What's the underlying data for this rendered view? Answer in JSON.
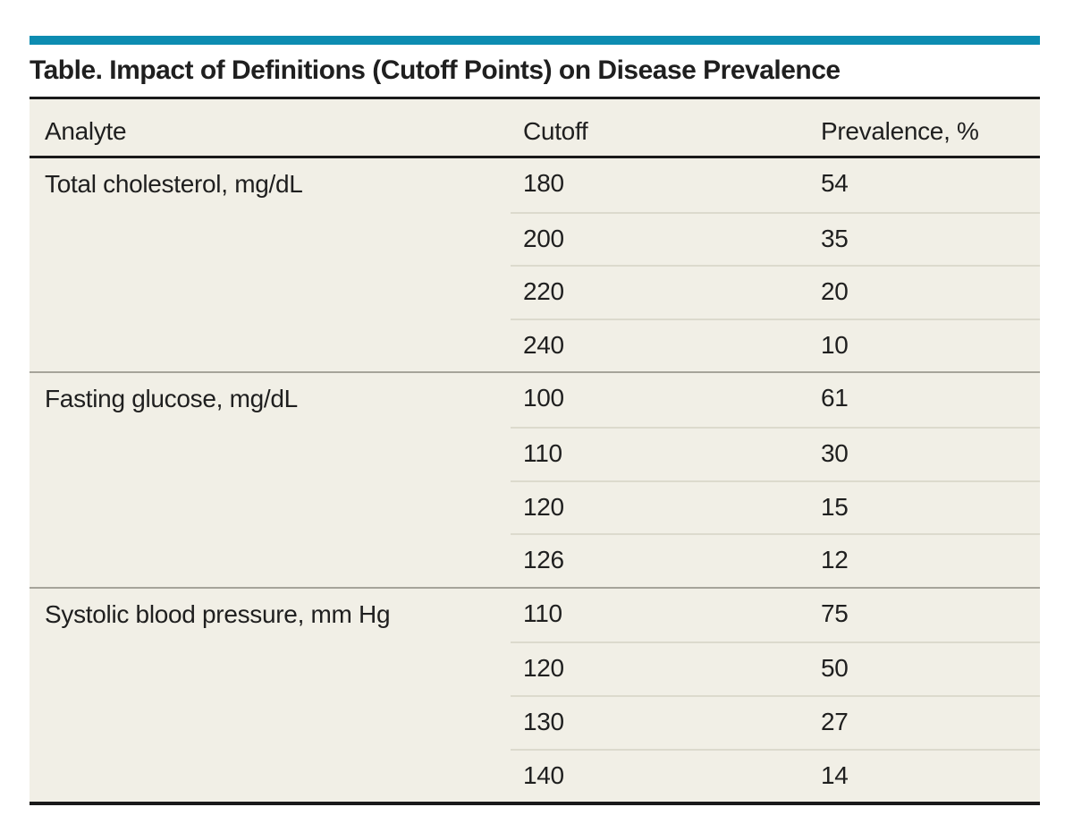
{
  "figure": {
    "title": "Table. Impact of Definitions (Cutoff Points) on Disease Prevalence"
  },
  "colors": {
    "accent": "#0d8cb1",
    "table_bg": "#f1efe6",
    "ink": "#1f1f1f",
    "rule": "#1a1a1a",
    "row_line": "#dcdacd",
    "group_line": "#a6a49a",
    "page_bg": "#ffffff"
  },
  "table": {
    "columns": [
      "Analyte",
      "Cutoff",
      "Prevalence, %"
    ],
    "groups": [
      {
        "analyte": "Total cholesterol, mg/dL",
        "rows": [
          {
            "cutoff": "180",
            "prevalence": "54"
          },
          {
            "cutoff": "200",
            "prevalence": "35"
          },
          {
            "cutoff": "220",
            "prevalence": "20"
          },
          {
            "cutoff": "240",
            "prevalence": "10"
          }
        ]
      },
      {
        "analyte": "Fasting glucose, mg/dL",
        "rows": [
          {
            "cutoff": "100",
            "prevalence": "61"
          },
          {
            "cutoff": "110",
            "prevalence": "30"
          },
          {
            "cutoff": "120",
            "prevalence": "15"
          },
          {
            "cutoff": "126",
            "prevalence": "12"
          }
        ]
      },
      {
        "analyte": "Systolic blood pressure, mm Hg",
        "rows": [
          {
            "cutoff": "110",
            "prevalence": "75"
          },
          {
            "cutoff": "120",
            "prevalence": "50"
          },
          {
            "cutoff": "130",
            "prevalence": "27"
          },
          {
            "cutoff": "140",
            "prevalence": "14"
          }
        ]
      }
    ]
  }
}
